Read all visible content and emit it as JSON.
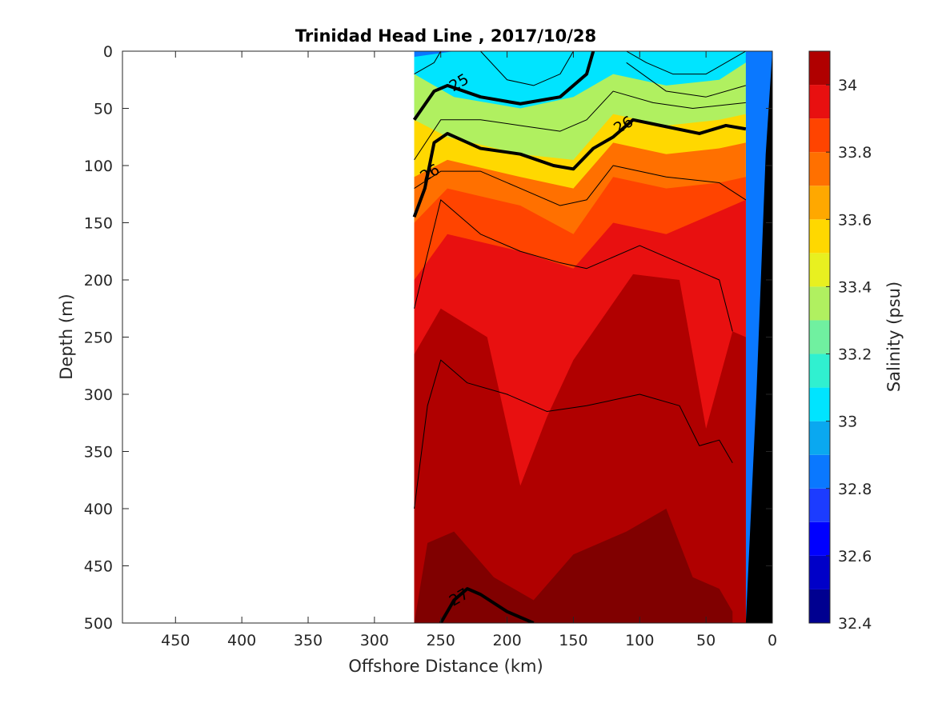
{
  "chart_data": {
    "type": "heatmap",
    "title": "Trinidad Head Line , 2017/10/28",
    "xlabel": "Offshore Distance (km)",
    "ylabel": "Depth (m)",
    "xlim": [
      490,
      0
    ],
    "ylim": [
      0,
      500
    ],
    "y_reversed": true,
    "x_reversed": true,
    "x_ticks": [
      450,
      400,
      350,
      300,
      250,
      200,
      150,
      100,
      50,
      0
    ],
    "y_ticks": [
      0,
      50,
      100,
      150,
      200,
      250,
      300,
      350,
      400,
      450,
      500
    ],
    "colorbar": {
      "label": "Salinity (psu)",
      "range": [
        32.4,
        34.1
      ],
      "ticks": [
        32.4,
        32.6,
        32.8,
        33,
        33.2,
        33.4,
        33.6,
        33.8,
        34
      ],
      "levels": [
        32.4,
        32.5,
        32.6,
        32.7,
        32.8,
        32.9,
        33.0,
        33.1,
        33.2,
        33.3,
        33.4,
        33.5,
        33.6,
        33.7,
        33.8,
        33.9,
        34.0,
        34.1
      ],
      "colors": [
        "#000090",
        "#0000c8",
        "#0000ff",
        "#1c3cff",
        "#0a78ff",
        "#0aa8f0",
        "#00e4ff",
        "#30f0d0",
        "#70f0a0",
        "#b0f060",
        "#e8f020",
        "#ffd800",
        "#ffa800",
        "#ff7000",
        "#ff4400",
        "#e81010",
        "#b00000",
        "#800000"
      ]
    },
    "data_extent_km": [
      270,
      0
    ],
    "salinity_layers": [
      {
        "value": 33.0,
        "profile": [
          [
            270,
            5
          ],
          [
            240,
            0
          ],
          [
            180,
            0
          ],
          [
            135,
            0
          ],
          [
            110,
            0
          ],
          [
            30,
            0
          ],
          [
            20,
            0
          ]
        ]
      },
      {
        "value": 33.3,
        "profile": [
          [
            270,
            20
          ],
          [
            240,
            40
          ],
          [
            190,
            50
          ],
          [
            150,
            40
          ],
          [
            120,
            20
          ],
          [
            80,
            30
          ],
          [
            40,
            25
          ],
          [
            20,
            10
          ]
        ]
      },
      {
        "value": 33.5,
        "profile": [
          [
            270,
            60
          ],
          [
            245,
            75
          ],
          [
            190,
            90
          ],
          [
            150,
            95
          ],
          [
            120,
            55
          ],
          [
            80,
            65
          ],
          [
            40,
            60
          ],
          [
            20,
            55
          ]
        ]
      },
      {
        "value": 33.7,
        "profile": [
          [
            270,
            110
          ],
          [
            245,
            95
          ],
          [
            190,
            110
          ],
          [
            150,
            120
          ],
          [
            120,
            80
          ],
          [
            80,
            90
          ],
          [
            40,
            85
          ],
          [
            20,
            80
          ]
        ]
      },
      {
        "value": 33.85,
        "profile": [
          [
            270,
            150
          ],
          [
            245,
            120
          ],
          [
            190,
            135
          ],
          [
            150,
            160
          ],
          [
            120,
            110
          ],
          [
            80,
            120
          ],
          [
            40,
            115
          ],
          [
            20,
            110
          ]
        ]
      },
      {
        "value": 33.95,
        "profile": [
          [
            270,
            200
          ],
          [
            245,
            160
          ],
          [
            190,
            175
          ],
          [
            150,
            190
          ],
          [
            120,
            150
          ],
          [
            80,
            160
          ],
          [
            40,
            140
          ],
          [
            20,
            130
          ]
        ]
      },
      {
        "value": 34.05,
        "profile": [
          [
            270,
            265
          ],
          [
            250,
            225
          ],
          [
            215,
            250
          ],
          [
            190,
            380
          ],
          [
            170,
            320
          ],
          [
            150,
            270
          ],
          [
            105,
            195
          ],
          [
            70,
            200
          ],
          [
            50,
            330
          ],
          [
            30,
            245
          ],
          [
            20,
            250
          ]
        ]
      },
      {
        "value": 34.1,
        "profile": [
          [
            270,
            500
          ],
          [
            260,
            430
          ],
          [
            240,
            420
          ],
          [
            210,
            460
          ],
          [
            180,
            480
          ],
          [
            150,
            440
          ],
          [
            110,
            420
          ],
          [
            80,
            400
          ],
          [
            60,
            460
          ],
          [
            40,
            470
          ],
          [
            30,
            490
          ]
        ]
      }
    ],
    "density_contours": [
      {
        "label": "25",
        "bold": true,
        "points": [
          [
            270,
            60
          ],
          [
            255,
            35
          ],
          [
            245,
            30
          ],
          [
            220,
            40
          ],
          [
            190,
            46
          ],
          [
            160,
            40
          ],
          [
            140,
            20
          ],
          [
            135,
            0
          ]
        ]
      },
      {
        "label": "26",
        "bold": true,
        "points": [
          [
            270,
            145
          ],
          [
            262,
            120
          ],
          [
            255,
            80
          ],
          [
            245,
            72
          ],
          [
            220,
            85
          ],
          [
            190,
            90
          ],
          [
            165,
            100
          ],
          [
            150,
            103
          ],
          [
            135,
            85
          ],
          [
            120,
            75
          ],
          [
            105,
            60
          ],
          [
            80,
            66
          ],
          [
            55,
            72
          ],
          [
            35,
            65
          ],
          [
            20,
            68
          ]
        ]
      },
      {
        "label": "",
        "bold": false,
        "points": [
          [
            270,
            20
          ],
          [
            255,
            10
          ],
          [
            250,
            0
          ]
        ]
      },
      {
        "label": "",
        "bold": false,
        "points": [
          [
            220,
            0
          ],
          [
            200,
            25
          ],
          [
            180,
            30
          ],
          [
            160,
            20
          ],
          [
            150,
            0
          ]
        ]
      },
      {
        "label": "",
        "bold": false,
        "points": [
          [
            110,
            0
          ],
          [
            95,
            10
          ],
          [
            75,
            20
          ],
          [
            50,
            20
          ],
          [
            20,
            0
          ]
        ]
      },
      {
        "label": "",
        "bold": false,
        "points": [
          [
            110,
            10
          ],
          [
            80,
            35
          ],
          [
            50,
            40
          ],
          [
            20,
            30
          ]
        ]
      },
      {
        "label": "",
        "bold": false,
        "points": [
          [
            270,
            95
          ],
          [
            250,
            60
          ],
          [
            220,
            60
          ],
          [
            190,
            65
          ],
          [
            160,
            70
          ],
          [
            140,
            60
          ],
          [
            120,
            35
          ],
          [
            90,
            45
          ],
          [
            60,
            50
          ],
          [
            20,
            45
          ]
        ]
      },
      {
        "label": "",
        "bold": false,
        "points": [
          [
            270,
            120
          ],
          [
            250,
            105
          ],
          [
            220,
            105
          ],
          [
            190,
            120
          ],
          [
            160,
            135
          ],
          [
            140,
            130
          ],
          [
            120,
            100
          ],
          [
            80,
            110
          ],
          [
            40,
            115
          ],
          [
            20,
            130
          ]
        ]
      },
      {
        "label": "",
        "bold": false,
        "points": [
          [
            270,
            225
          ],
          [
            250,
            130
          ],
          [
            220,
            160
          ],
          [
            190,
            175
          ],
          [
            160,
            185
          ],
          [
            140,
            190
          ],
          [
            100,
            170
          ],
          [
            60,
            190
          ],
          [
            40,
            200
          ],
          [
            30,
            245
          ]
        ]
      },
      {
        "label": "",
        "bold": false,
        "points": [
          [
            270,
            400
          ],
          [
            260,
            310
          ],
          [
            250,
            270
          ],
          [
            230,
            290
          ],
          [
            200,
            300
          ],
          [
            170,
            315
          ],
          [
            140,
            310
          ],
          [
            100,
            300
          ],
          [
            70,
            310
          ],
          [
            55,
            345
          ],
          [
            40,
            340
          ],
          [
            30,
            360
          ]
        ]
      },
      {
        "label": "27",
        "bold": true,
        "points": [
          [
            250,
            500
          ],
          [
            240,
            480
          ],
          [
            230,
            470
          ],
          [
            220,
            475
          ],
          [
            200,
            490
          ],
          [
            180,
            500
          ]
        ]
      }
    ],
    "contour_label_positions": [
      {
        "label": "25",
        "x": 236,
        "y": 28
      },
      {
        "label": "26",
        "x": 112,
        "y": 65
      },
      {
        "label": "26",
        "x": 258,
        "y": 107
      },
      {
        "label": "27",
        "x": 236,
        "y": 478
      }
    ],
    "bathymetry": [
      [
        0,
        0
      ],
      [
        5,
        90
      ],
      [
        12,
        300
      ],
      [
        20,
        500
      ],
      [
        0,
        500
      ]
    ]
  }
}
